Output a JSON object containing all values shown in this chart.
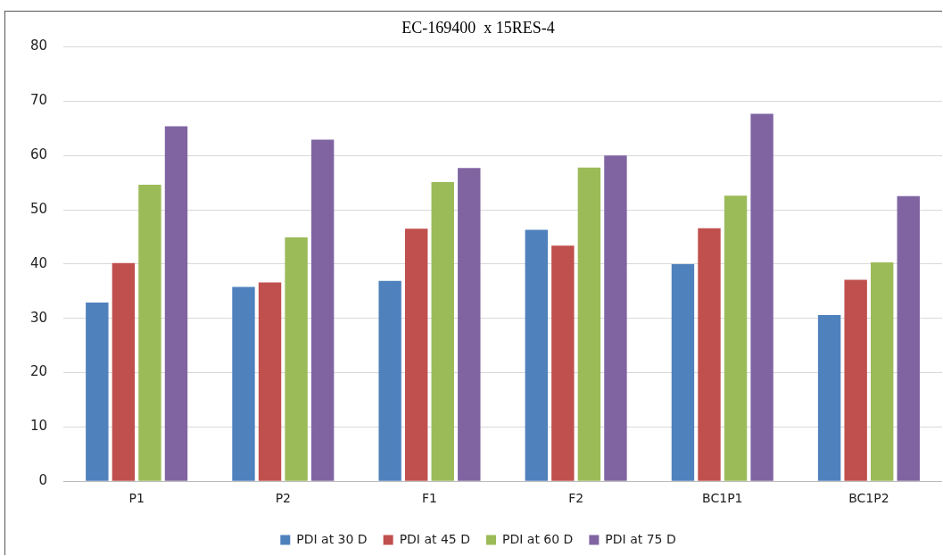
{
  "chart_data": {
    "type": "bar",
    "title": "EC-169400  x 15RES-4",
    "categories": [
      "P1",
      "P2",
      "F1",
      "F2",
      "BC1P1",
      "BC1P2"
    ],
    "series": [
      {
        "name": "PDI at 30 D",
        "color": "#4f81bd",
        "values": [
          32.9,
          35.8,
          36.9,
          46.3,
          40,
          30.6
        ]
      },
      {
        "name": "PDI at 45 D",
        "color": "#c0504d",
        "values": [
          40.2,
          36.6,
          46.5,
          43.4,
          46.6,
          37.1
        ]
      },
      {
        "name": "PDI at 60 D",
        "color": "#9bbb59",
        "values": [
          54.6,
          44.9,
          55.1,
          57.8,
          52.6,
          40.3
        ]
      },
      {
        "name": "PDI at 75 D",
        "color": "#8064a2",
        "values": [
          65.4,
          62.9,
          57.7,
          60,
          67.7,
          52.5
        ]
      }
    ],
    "ylim": [
      0,
      80
    ],
    "yticks": [
      0,
      10,
      20,
      30,
      40,
      50,
      60,
      70,
      80
    ],
    "grid": "y",
    "legend": "bottom"
  }
}
